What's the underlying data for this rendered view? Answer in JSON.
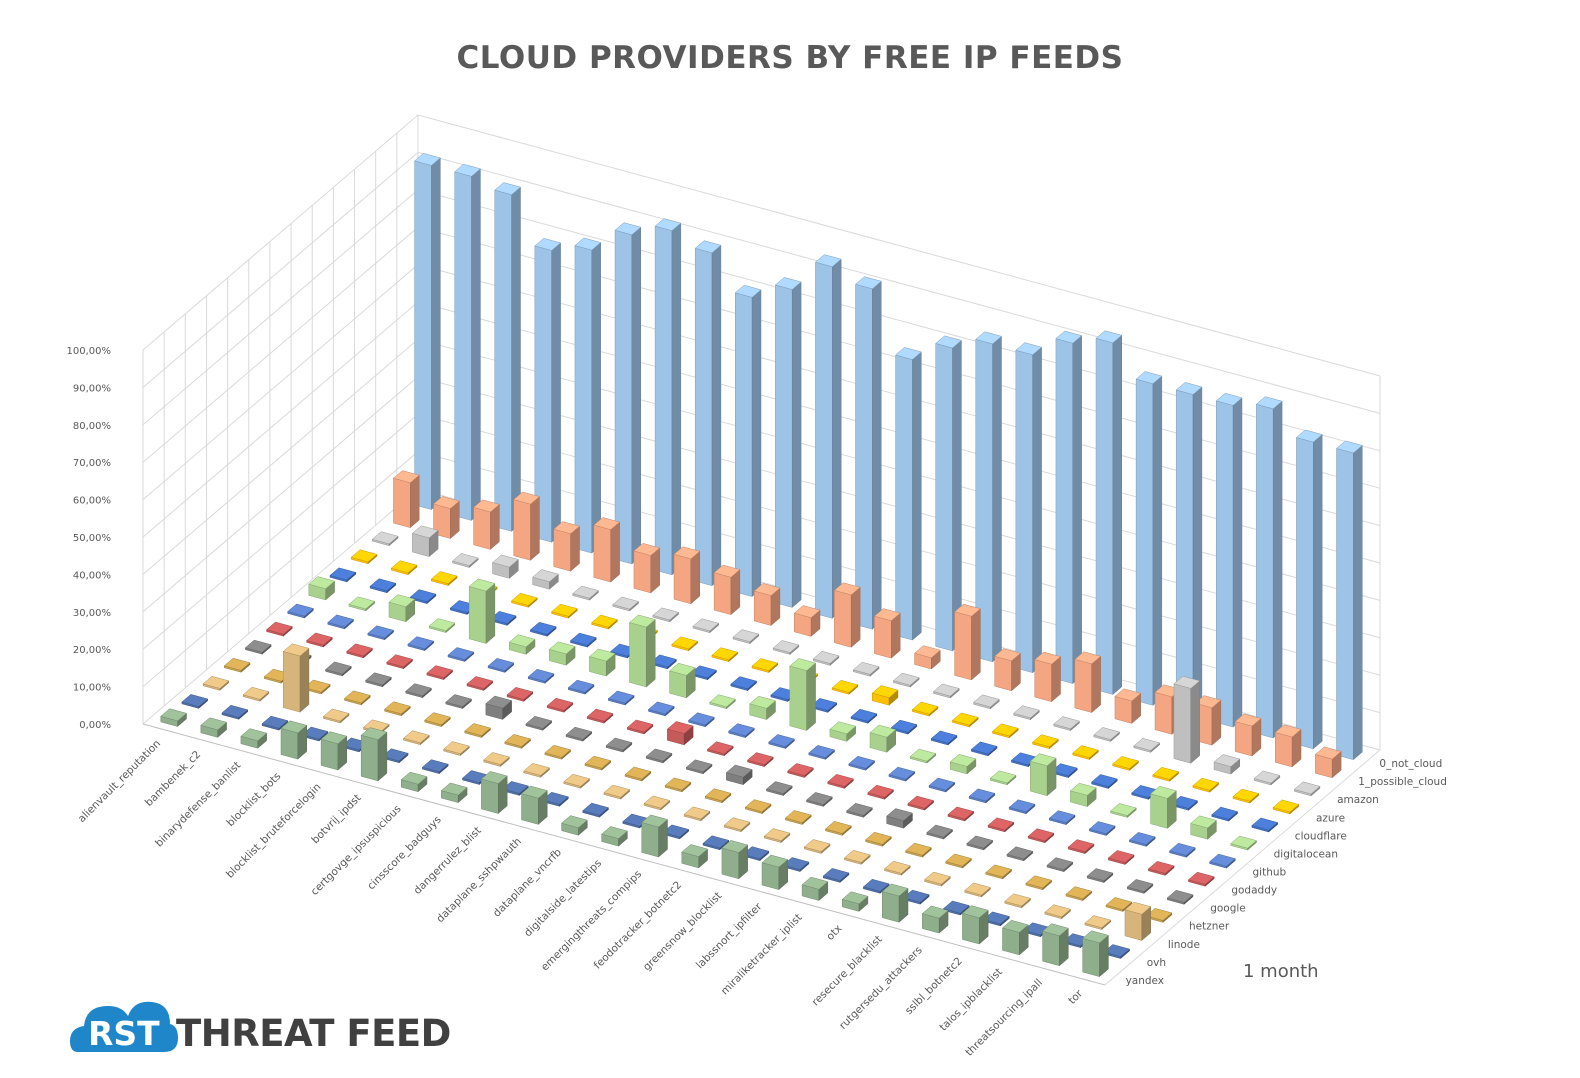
{
  "chart_data": {
    "type": "bar3d",
    "title": "CLOUD PROVIDERS BY FREE IP FEEDS",
    "zlim": [
      0,
      100
    ],
    "ztick_labels": [
      "0,00%",
      "10,00%",
      "20,00%",
      "30,00%",
      "40,00%",
      "50,00%",
      "60,00%",
      "70,00%",
      "80,00%",
      "90,00%",
      "100,00%"
    ],
    "feeds": [
      "alienvault_reputation",
      "bambenek_c2",
      "binarydefense_banlist",
      "blocklist_bots",
      "blocklist_bruteforcelogin",
      "botvrij_ipdst",
      "certgovge_ipsuspicious",
      "cinsscore_badguys",
      "dangerrulez_blist",
      "dataplane_sshpwauth",
      "dataplane_vncrfb",
      "digitalside_latestips",
      "emergingthreats_compips",
      "feodotracker_botnetc2",
      "greensnow_blocklist",
      "labssnort_ipfilter",
      "miraliketracker_iplist",
      "otx",
      "resecure_blacklist",
      "rutgersedu_attackers",
      "sslbl_botnetc2",
      "talos_ipblacklist",
      "threatsourcing_ipall",
      "tor"
    ],
    "providers": [
      "0_not_cloud",
      "1_possible_cloud",
      "amazon",
      "azure",
      "cloudflare",
      "digitalocean",
      "github",
      "godaddy",
      "google",
      "hetzner",
      "linode",
      "ovh",
      "yandex"
    ],
    "series": [
      {
        "name": "0_not_cloud",
        "values": [
          92,
          92,
          90,
          78,
          81,
          88,
          92,
          89,
          80,
          85,
          94,
          91,
          75,
          81,
          85,
          85,
          91,
          94,
          86,
          86,
          86,
          88,
          82,
          82
        ]
      },
      {
        "name": "1_possible_cloud",
        "values": [
          12,
          8,
          10,
          15,
          10,
          14,
          10,
          12,
          10,
          8,
          5,
          14,
          10,
          3,
          17,
          8,
          10,
          13,
          6,
          10,
          10,
          8,
          8,
          5
        ]
      },
      {
        "name": "amazon",
        "values": [
          0.5,
          5,
          0.5,
          3,
          2,
          0.5,
          0.5,
          0.5,
          0.5,
          0.5,
          0.5,
          0.5,
          0.5,
          0.5,
          0.5,
          0.5,
          0.5,
          0.5,
          0.5,
          0.5,
          20,
          2,
          0.5,
          0.5
        ]
      },
      {
        "name": "azure",
        "values": [
          0.5,
          0.5,
          0.5,
          0.5,
          0.5,
          0.5,
          0.5,
          0.5,
          0.5,
          0.5,
          0.5,
          0.5,
          0.5,
          2,
          0.5,
          0.5,
          0.5,
          0.5,
          0.5,
          0.5,
          0.5,
          0.5,
          0.5,
          0.5
        ]
      },
      {
        "name": "cloudflare",
        "values": [
          0.5,
          0.5,
          0.5,
          0.5,
          0.5,
          0.5,
          0.5,
          0.5,
          0.5,
          0.5,
          0.5,
          0.5,
          0.5,
          0.5,
          0.5,
          0.5,
          0.5,
          0.5,
          0.5,
          0.5,
          0.5,
          0.5,
          0.5,
          0.5
        ]
      },
      {
        "name": "digitalocean",
        "values": [
          3,
          0.5,
          4,
          0.5,
          14,
          2,
          3,
          4,
          16,
          6,
          0.5,
          3,
          16,
          2,
          4,
          0.5,
          2,
          0.5,
          8,
          3,
          0.5,
          8,
          3,
          0.5
        ]
      },
      {
        "name": "github",
        "values": [
          0.5,
          0.5,
          0.5,
          0.5,
          0.5,
          0.5,
          0.5,
          0.5,
          0.5,
          0.5,
          0.5,
          0.5,
          0.5,
          0.5,
          0.5,
          0.5,
          0.5,
          0.5,
          0.5,
          0.5,
          0.5,
          0.5,
          0.5,
          0.5
        ]
      },
      {
        "name": "godaddy",
        "values": [
          0.5,
          0.5,
          0.5,
          0.5,
          0.5,
          0.5,
          0.5,
          0.5,
          0.5,
          0.5,
          3,
          0.5,
          0.5,
          0.5,
          0.5,
          0.5,
          0.5,
          0.5,
          0.5,
          0.5,
          0.5,
          0.5,
          0.5,
          0.5
        ]
      },
      {
        "name": "google",
        "values": [
          0.5,
          0.5,
          0.5,
          0.5,
          0.5,
          0.5,
          3,
          0.5,
          0.5,
          0.5,
          0.5,
          0.5,
          2,
          0.5,
          0.5,
          0.5,
          2,
          0.5,
          0.5,
          0.5,
          0.5,
          0.5,
          0.5,
          0.5
        ]
      },
      {
        "name": "hetzner",
        "values": [
          0.5,
          0.5,
          0.5,
          0.5,
          0.5,
          0.5,
          0.5,
          0.5,
          0.5,
          0.5,
          0.5,
          0.5,
          0.5,
          0.5,
          0.5,
          0.5,
          0.5,
          0.5,
          0.5,
          0.5,
          0.5,
          0.5,
          0.5,
          0.5
        ]
      },
      {
        "name": "linode",
        "values": [
          0.5,
          0.5,
          15,
          0.5,
          0.5,
          0.5,
          0.5,
          0.5,
          0.5,
          0.5,
          0.5,
          0.5,
          0.5,
          0.5,
          0.5,
          0.5,
          0.5,
          0.5,
          0.5,
          0.5,
          0.5,
          0.5,
          0.5,
          7
        ]
      },
      {
        "name": "ovh",
        "values": [
          0.5,
          0.5,
          0.5,
          0.5,
          0.5,
          0.5,
          0.5,
          0.5,
          0.5,
          0.5,
          0.5,
          0.5,
          0.5,
          0.5,
          0.5,
          0.5,
          0.5,
          0.5,
          0.5,
          0.5,
          0.5,
          0.5,
          0.5,
          0.5
        ]
      },
      {
        "name": "yandex",
        "values": [
          1.5,
          2,
          2,
          7,
          7,
          11,
          2,
          2,
          8,
          7,
          2,
          2,
          8,
          3,
          7,
          6,
          3,
          2,
          7,
          4,
          7,
          6,
          8,
          9
        ]
      }
    ]
  },
  "period_label": "1 month",
  "logo": {
    "mark": "RST",
    "text": "THREAT FEED"
  },
  "colors": {
    "0_not_cloud": "#9dc3e6",
    "1_possible_cloud": "#f4a582",
    "amazon": "#bfbfbf",
    "azure": "#ffc000",
    "cloudflare": "#4472c4",
    "digitalocean": "#a9d18e",
    "github": "#5b7fc4",
    "godaddy": "#c55a5a",
    "google": "#7f7f7f",
    "hetzner": "#c9a24f",
    "linode": "#d6b47a",
    "ovh": "#4f6fa8",
    "yandex": "#8fae8b",
    "axis": "#d9d9d9",
    "text": "#595959",
    "logo": "#1f86c9"
  }
}
